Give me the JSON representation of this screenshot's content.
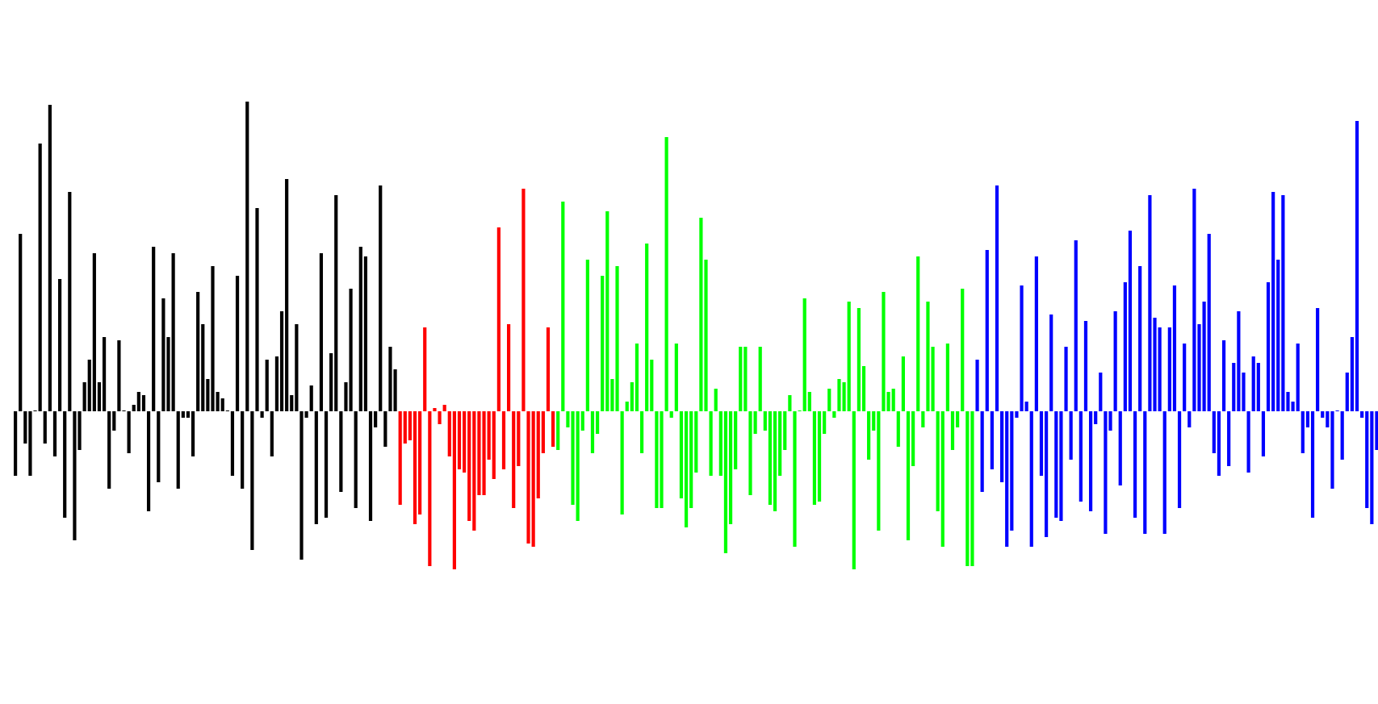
{
  "chart_data": {
    "type": "bar",
    "title": "",
    "xlabel": "",
    "ylabel": "",
    "axes_visible": false,
    "grid": false,
    "legend": "none",
    "baseline": 0,
    "ylim": [
      -1.0,
      1.0
    ],
    "series": [
      {
        "color": "#000000",
        "values": [
          -0.2,
          0.55,
          -0.1,
          -0.2,
          0.0,
          0.83,
          -0.1,
          0.95,
          -0.14,
          0.41,
          -0.33,
          0.68,
          -0.4,
          -0.12,
          0.09,
          0.16,
          0.49,
          0.09,
          0.23,
          -0.24,
          -0.06,
          0.22,
          0.0,
          -0.13,
          0.02,
          0.06,
          0.05,
          -0.31,
          0.51,
          -0.22,
          0.35,
          0.23,
          0.49,
          -0.24,
          -0.02,
          -0.02,
          -0.14,
          0.37,
          0.27,
          0.1,
          0.45,
          0.06,
          0.04,
          0.0,
          -0.2,
          0.42,
          -0.24,
          0.96,
          -0.43,
          0.63,
          -0.02,
          0.16,
          -0.14,
          0.17,
          0.31,
          0.72,
          0.05,
          0.27,
          -0.46,
          -0.02,
          0.08,
          -0.35,
          0.49,
          -0.33,
          0.18,
          0.67,
          -0.25,
          0.09,
          0.38,
          -0.3,
          0.51,
          0.48,
          -0.34,
          -0.05,
          0.7,
          -0.11,
          0.2,
          0.13
        ]
      },
      {
        "color": "#ff0000",
        "values": [
          -0.29,
          -0.1,
          -0.09,
          -0.35,
          -0.32,
          0.26,
          -0.48,
          0.01,
          -0.04,
          0.02,
          -0.14,
          -0.49,
          -0.18,
          -0.19,
          -0.34,
          -0.37,
          -0.26,
          -0.26,
          -0.15,
          -0.21,
          0.57,
          -0.18,
          0.27,
          -0.3,
          -0.17,
          0.69,
          -0.41,
          -0.42,
          -0.27,
          -0.13,
          0.26,
          -0.11
        ]
      },
      {
        "color": "#00ff00",
        "values": [
          -0.12,
          0.65,
          -0.05,
          -0.29,
          -0.34,
          -0.06,
          0.47,
          -0.13,
          -0.07,
          0.42,
          0.62,
          0.1,
          0.45,
          -0.32,
          0.03,
          0.09,
          0.21,
          -0.13,
          0.52,
          0.16,
          -0.3,
          -0.3,
          0.85,
          -0.02,
          0.21,
          -0.27,
          -0.36,
          -0.3,
          -0.19,
          0.6,
          0.47,
          -0.2,
          0.07,
          -0.2,
          -0.44,
          -0.35,
          -0.18,
          0.2,
          0.2,
          -0.26,
          -0.07,
          0.2,
          -0.06,
          -0.29,
          -0.31,
          -0.2,
          -0.12,
          0.05,
          -0.42,
          0.0,
          0.35,
          0.06,
          -0.29,
          -0.28,
          -0.07,
          0.07,
          -0.02,
          0.1,
          0.09,
          0.34,
          -0.49,
          0.32,
          0.14,
          -0.15,
          -0.06,
          -0.37,
          0.37,
          0.06,
          0.07,
          -0.11,
          0.17,
          -0.4,
          -0.17,
          0.48,
          -0.05,
          0.34,
          0.2,
          -0.31,
          -0.42,
          0.21,
          -0.12,
          -0.05,
          0.38,
          -0.48,
          -0.48
        ]
      },
      {
        "color": "#0000ff",
        "values": [
          0.16,
          -0.25,
          0.5,
          -0.18,
          0.7,
          -0.22,
          -0.42,
          -0.37,
          -0.02,
          0.39,
          0.03,
          -0.42,
          0.48,
          -0.2,
          -0.39,
          0.3,
          -0.33,
          -0.34,
          0.2,
          -0.15,
          0.53,
          -0.28,
          0.28,
          -0.31,
          -0.04,
          0.12,
          -0.38,
          -0.06,
          0.31,
          -0.23,
          0.4,
          0.56,
          -0.33,
          0.45,
          -0.38,
          0.67,
          0.29,
          0.26,
          -0.38,
          0.26,
          0.39,
          -0.3,
          0.21,
          -0.05,
          0.69,
          0.27,
          0.34,
          0.55,
          -0.13,
          -0.2,
          0.22,
          -0.17,
          0.15,
          0.31,
          0.12,
          -0.19,
          0.17,
          0.15,
          -0.14,
          0.4,
          0.68,
          0.47,
          0.67,
          0.06,
          0.03,
          0.21,
          -0.13,
          -0.05,
          -0.33,
          0.32,
          -0.02,
          -0.05,
          -0.24,
          0.0,
          -0.15,
          0.12,
          0.23,
          0.9,
          -0.02,
          -0.3,
          -0.35,
          -0.12,
          -0.2,
          -0.19,
          -0.44,
          0.25,
          0.76,
          -0.12,
          -0.2,
          0.28
        ]
      }
    ]
  }
}
